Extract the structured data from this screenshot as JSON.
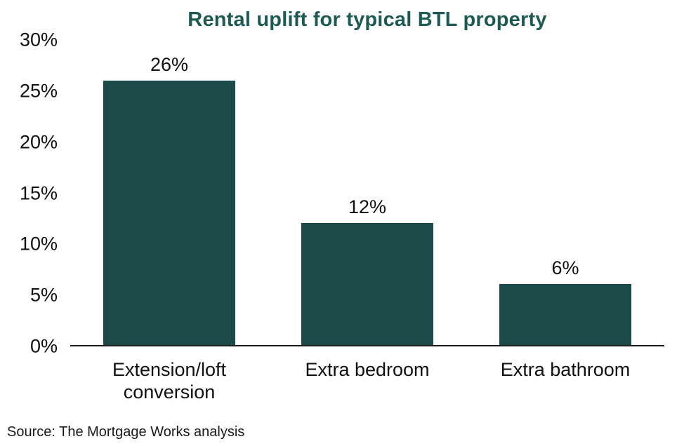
{
  "chart_data": {
    "type": "bar",
    "title": "Rental uplift for typical BTL property",
    "categories": [
      "Extension/loft conversion",
      "Extra bedroom",
      "Extra bathroom"
    ],
    "values": [
      26,
      12,
      6
    ],
    "value_labels": [
      "26%",
      "12%",
      "6%"
    ],
    "xlabel": "",
    "ylabel": "",
    "ylim": [
      0,
      30
    ],
    "yticks": [
      {
        "value": 30,
        "label": "30%"
      },
      {
        "value": 25,
        "label": "25%"
      },
      {
        "value": 20,
        "label": "20%"
      },
      {
        "value": 15,
        "label": "15%"
      },
      {
        "value": 10,
        "label": "10%"
      },
      {
        "value": 5,
        "label": "5%"
      },
      {
        "value": 0,
        "label": "0%"
      }
    ],
    "bar_color": "#1b4a49",
    "title_color": "#1e5a54",
    "axis_color": "#1c1c1c",
    "grid": false,
    "legend": false
  },
  "source": "Source: The Mortgage Works analysis"
}
